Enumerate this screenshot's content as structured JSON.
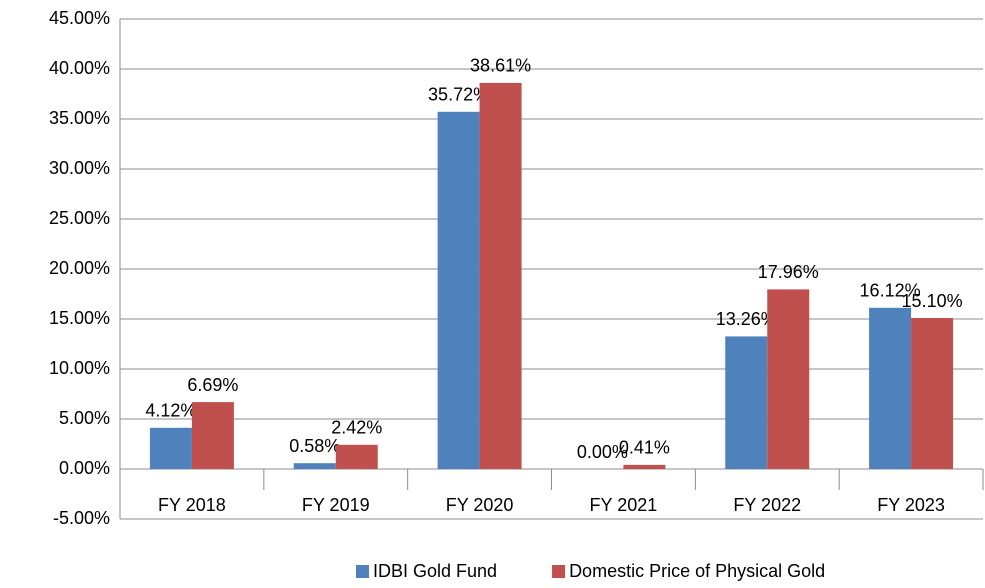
{
  "chart_data": {
    "type": "bar",
    "categories": [
      "FY 2018",
      "FY 2019",
      "FY 2020",
      "FY 2021",
      "FY 2022",
      "FY 2023"
    ],
    "series": [
      {
        "name": "IDBI Gold Fund",
        "color": "#4f81bd",
        "values": [
          4.12,
          0.58,
          35.72,
          0.0,
          13.26,
          16.12
        ],
        "value_labels": [
          "4.12%",
          "0.58%",
          "35.72%",
          "0.00%",
          "13.26%",
          "16.12%"
        ]
      },
      {
        "name": "Domestic Price of Physical Gold",
        "color": "#c0504d",
        "values": [
          6.69,
          2.42,
          38.61,
          0.41,
          17.96,
          15.1
        ],
        "value_labels": [
          "6.69%",
          "2.42%",
          "38.61%",
          "0.41%",
          "17.96%",
          "15.10%"
        ]
      }
    ],
    "ylim": [
      -5,
      45
    ],
    "yticks": [
      {
        "value": -5,
        "label": "-5.00%"
      },
      {
        "value": 0,
        "label": "0.00%"
      },
      {
        "value": 5,
        "label": "5.00%"
      },
      {
        "value": 10,
        "label": "10.00%"
      },
      {
        "value": 15,
        "label": "15.00%"
      },
      {
        "value": 20,
        "label": "20.00%"
      },
      {
        "value": 25,
        "label": "25.00%"
      },
      {
        "value": 30,
        "label": "30.00%"
      },
      {
        "value": 35,
        "label": "35.00%"
      },
      {
        "value": 40,
        "label": "40.00%"
      },
      {
        "value": 45,
        "label": "45.00%"
      }
    ],
    "grid": true,
    "legend": "bottom"
  }
}
